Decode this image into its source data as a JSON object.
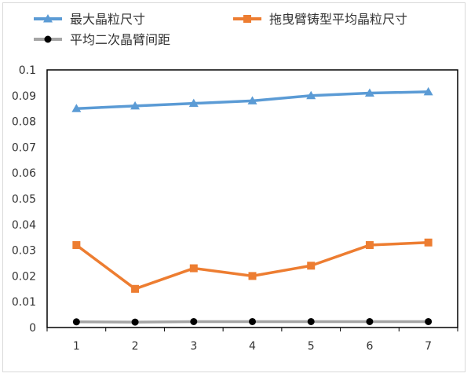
{
  "chart_data": {
    "type": "line",
    "categories": [
      "1",
      "2",
      "3",
      "4",
      "5",
      "6",
      "7"
    ],
    "series": [
      {
        "name": "最大晶粒尺寸",
        "color": "#5b9bd5",
        "marker": "triangle",
        "values": [
          0.085,
          0.086,
          0.087,
          0.088,
          0.09,
          0.091,
          0.0915
        ]
      },
      {
        "name": "拖曳臂铸型平均晶粒尺寸",
        "color": "#ed7d31",
        "marker": "square",
        "values": [
          0.032,
          0.015,
          0.023,
          0.02,
          0.024,
          0.032,
          0.033
        ]
      },
      {
        "name": "平均二次晶臂间距",
        "color": "#a5a5a5",
        "marker_color": "#000000",
        "marker": "circle",
        "values": [
          0.0022,
          0.0021,
          0.0023,
          0.0023,
          0.0023,
          0.0023,
          0.0023
        ]
      }
    ],
    "ylim": [
      0,
      0.1
    ],
    "yticks": [
      "0",
      "0.01",
      "0.02",
      "0.03",
      "0.04",
      "0.05",
      "0.06",
      "0.07",
      "0.08",
      "0.09",
      "0.1"
    ],
    "legend": "top",
    "grid": false,
    "title": "",
    "xlabel": "",
    "ylabel": ""
  }
}
